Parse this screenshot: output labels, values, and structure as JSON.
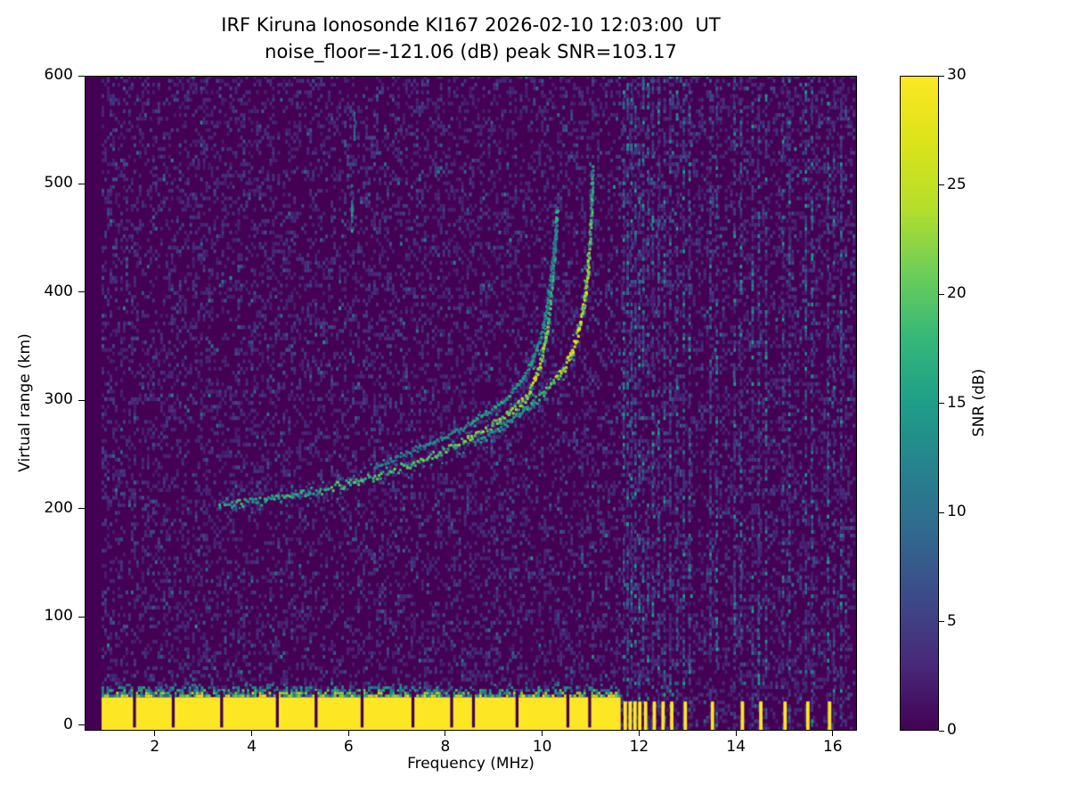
{
  "chart_data": {
    "type": "heatmap",
    "title": "IRF Kiruna Ionosonde KI167 2026-02-10 12:03:00  UT",
    "subtitle": "noise_floor=-121.06 (dB) peak SNR=103.17",
    "xlabel": "Frequency (MHz)",
    "ylabel": "Virtual range (km)",
    "colorbar_label": "SNR (dB)",
    "xlim": [
      0.55,
      16.5
    ],
    "ylim": [
      -5,
      600
    ],
    "clim": [
      0,
      30
    ],
    "xticks": [
      2,
      4,
      6,
      8,
      10,
      12,
      14,
      16
    ],
    "yticks": [
      0,
      100,
      200,
      300,
      400,
      500,
      600
    ],
    "cticks": [
      0,
      5,
      10,
      15,
      20,
      25,
      30
    ],
    "colormap": {
      "name": "viridis",
      "stops": [
        [
          0.0,
          "#440154"
        ],
        [
          0.1,
          "#482878"
        ],
        [
          0.2,
          "#3e4989"
        ],
        [
          0.3,
          "#31688e"
        ],
        [
          0.4,
          "#26828e"
        ],
        [
          0.5,
          "#1f9e89"
        ],
        [
          0.6,
          "#35b779"
        ],
        [
          0.7,
          "#6ece58"
        ],
        [
          0.8,
          "#b5de2b"
        ],
        [
          0.9,
          "#dce319"
        ],
        [
          1.0,
          "#fde725"
        ]
      ]
    },
    "background_value": 0,
    "noise": {
      "seed": 7,
      "freq_start": 0.9,
      "freq_end": 16.45,
      "cell_w_mhz": 0.055,
      "cell_h_km": 3.5,
      "mean_db": 1.6,
      "visible_threshold_db": 2
    },
    "ground_band": {
      "freq_start": 0.9,
      "freq_end": 11.62,
      "bottom_km": -5,
      "solid_top_km": 26,
      "speckle_top_km": 38,
      "value_db": 30,
      "gaps_mhz": [
        1.55,
        2.35,
        3.35,
        4.5,
        5.3,
        6.25,
        7.3,
        8.1,
        8.55,
        9.45,
        10.5,
        10.95
      ],
      "gap_width_mhz": 0.06
    },
    "rfi_columns": {
      "freqs_mhz": [
        11.66,
        11.74,
        11.82,
        11.9,
        11.98,
        12.06,
        12.16,
        12.26,
        12.38,
        12.5,
        12.62,
        12.76,
        12.9,
        13.02,
        13.45,
        13.58,
        13.95,
        14.08,
        14.32,
        14.45,
        14.6,
        14.95,
        15.08,
        15.42,
        15.55,
        15.88,
        16.0,
        16.15
      ],
      "width_mhz": 0.05,
      "density": 0.5,
      "mean_db": 4
    },
    "rfi_ground_stripes": {
      "freqs_mhz": [
        11.68,
        11.78,
        11.88,
        11.98,
        12.1,
        12.28,
        12.46,
        12.64,
        12.92,
        13.48,
        14.1,
        14.48,
        14.98,
        15.45,
        15.9
      ],
      "width_mhz": 0.07,
      "top_km": 22,
      "bottom_km": -5,
      "value_db": 30
    },
    "traces": [
      {
        "name": "F-layer O-mode",
        "width_km": 7,
        "points": [
          [
            3.3,
            206,
            18
          ],
          [
            3.8,
            206,
            19
          ],
          [
            4.3,
            209,
            19
          ],
          [
            4.8,
            212,
            20
          ],
          [
            5.3,
            217,
            20
          ],
          [
            5.8,
            222,
            21
          ],
          [
            6.3,
            228,
            21
          ],
          [
            6.8,
            235,
            21
          ],
          [
            7.3,
            243,
            22
          ],
          [
            7.8,
            252,
            22
          ],
          [
            8.3,
            262,
            23
          ],
          [
            8.8,
            273,
            24
          ],
          [
            9.2,
            285,
            25
          ],
          [
            9.5,
            297,
            26
          ],
          [
            9.7,
            308,
            27
          ],
          [
            9.85,
            322,
            27
          ],
          [
            9.95,
            338,
            26
          ],
          [
            10.05,
            358,
            24
          ],
          [
            10.12,
            380,
            22
          ],
          [
            10.17,
            405,
            21
          ],
          [
            10.22,
            432,
            20
          ],
          [
            10.26,
            458,
            19
          ],
          [
            10.29,
            480,
            18
          ]
        ]
      },
      {
        "name": "F-layer doubled echo",
        "width_km": 5,
        "points": [
          [
            6.5,
            240,
            14
          ],
          [
            7.0,
            249,
            15
          ],
          [
            7.5,
            258,
            15
          ],
          [
            8.0,
            268,
            16
          ],
          [
            8.5,
            280,
            17
          ],
          [
            9.0,
            294,
            18
          ],
          [
            9.3,
            306,
            18
          ],
          [
            9.6,
            322,
            18
          ],
          [
            9.8,
            340,
            17
          ],
          [
            9.95,
            360,
            16
          ],
          [
            10.08,
            388,
            15
          ],
          [
            10.18,
            422,
            14
          ],
          [
            10.28,
            462,
            13
          ]
        ]
      },
      {
        "name": "F-layer X-mode",
        "width_km": 7,
        "points": [
          [
            8.6,
            262,
            16
          ],
          [
            9.0,
            272,
            17
          ],
          [
            9.4,
            284,
            18
          ],
          [
            9.8,
            298,
            20
          ],
          [
            10.1,
            312,
            22
          ],
          [
            10.4,
            328,
            26
          ],
          [
            10.6,
            345,
            30
          ],
          [
            10.75,
            368,
            30
          ],
          [
            10.85,
            392,
            29
          ],
          [
            10.92,
            420,
            26
          ],
          [
            10.97,
            452,
            23
          ],
          [
            11.0,
            488,
            20
          ],
          [
            11.02,
            518,
            18
          ]
        ]
      }
    ],
    "artifact_streaks": [
      {
        "freq_mhz": 6.05,
        "range_km": [
          455,
          500
        ],
        "mean_db": 11
      },
      {
        "freq_mhz": 6.1,
        "range_km": [
          540,
          578
        ],
        "mean_db": 9
      }
    ]
  }
}
